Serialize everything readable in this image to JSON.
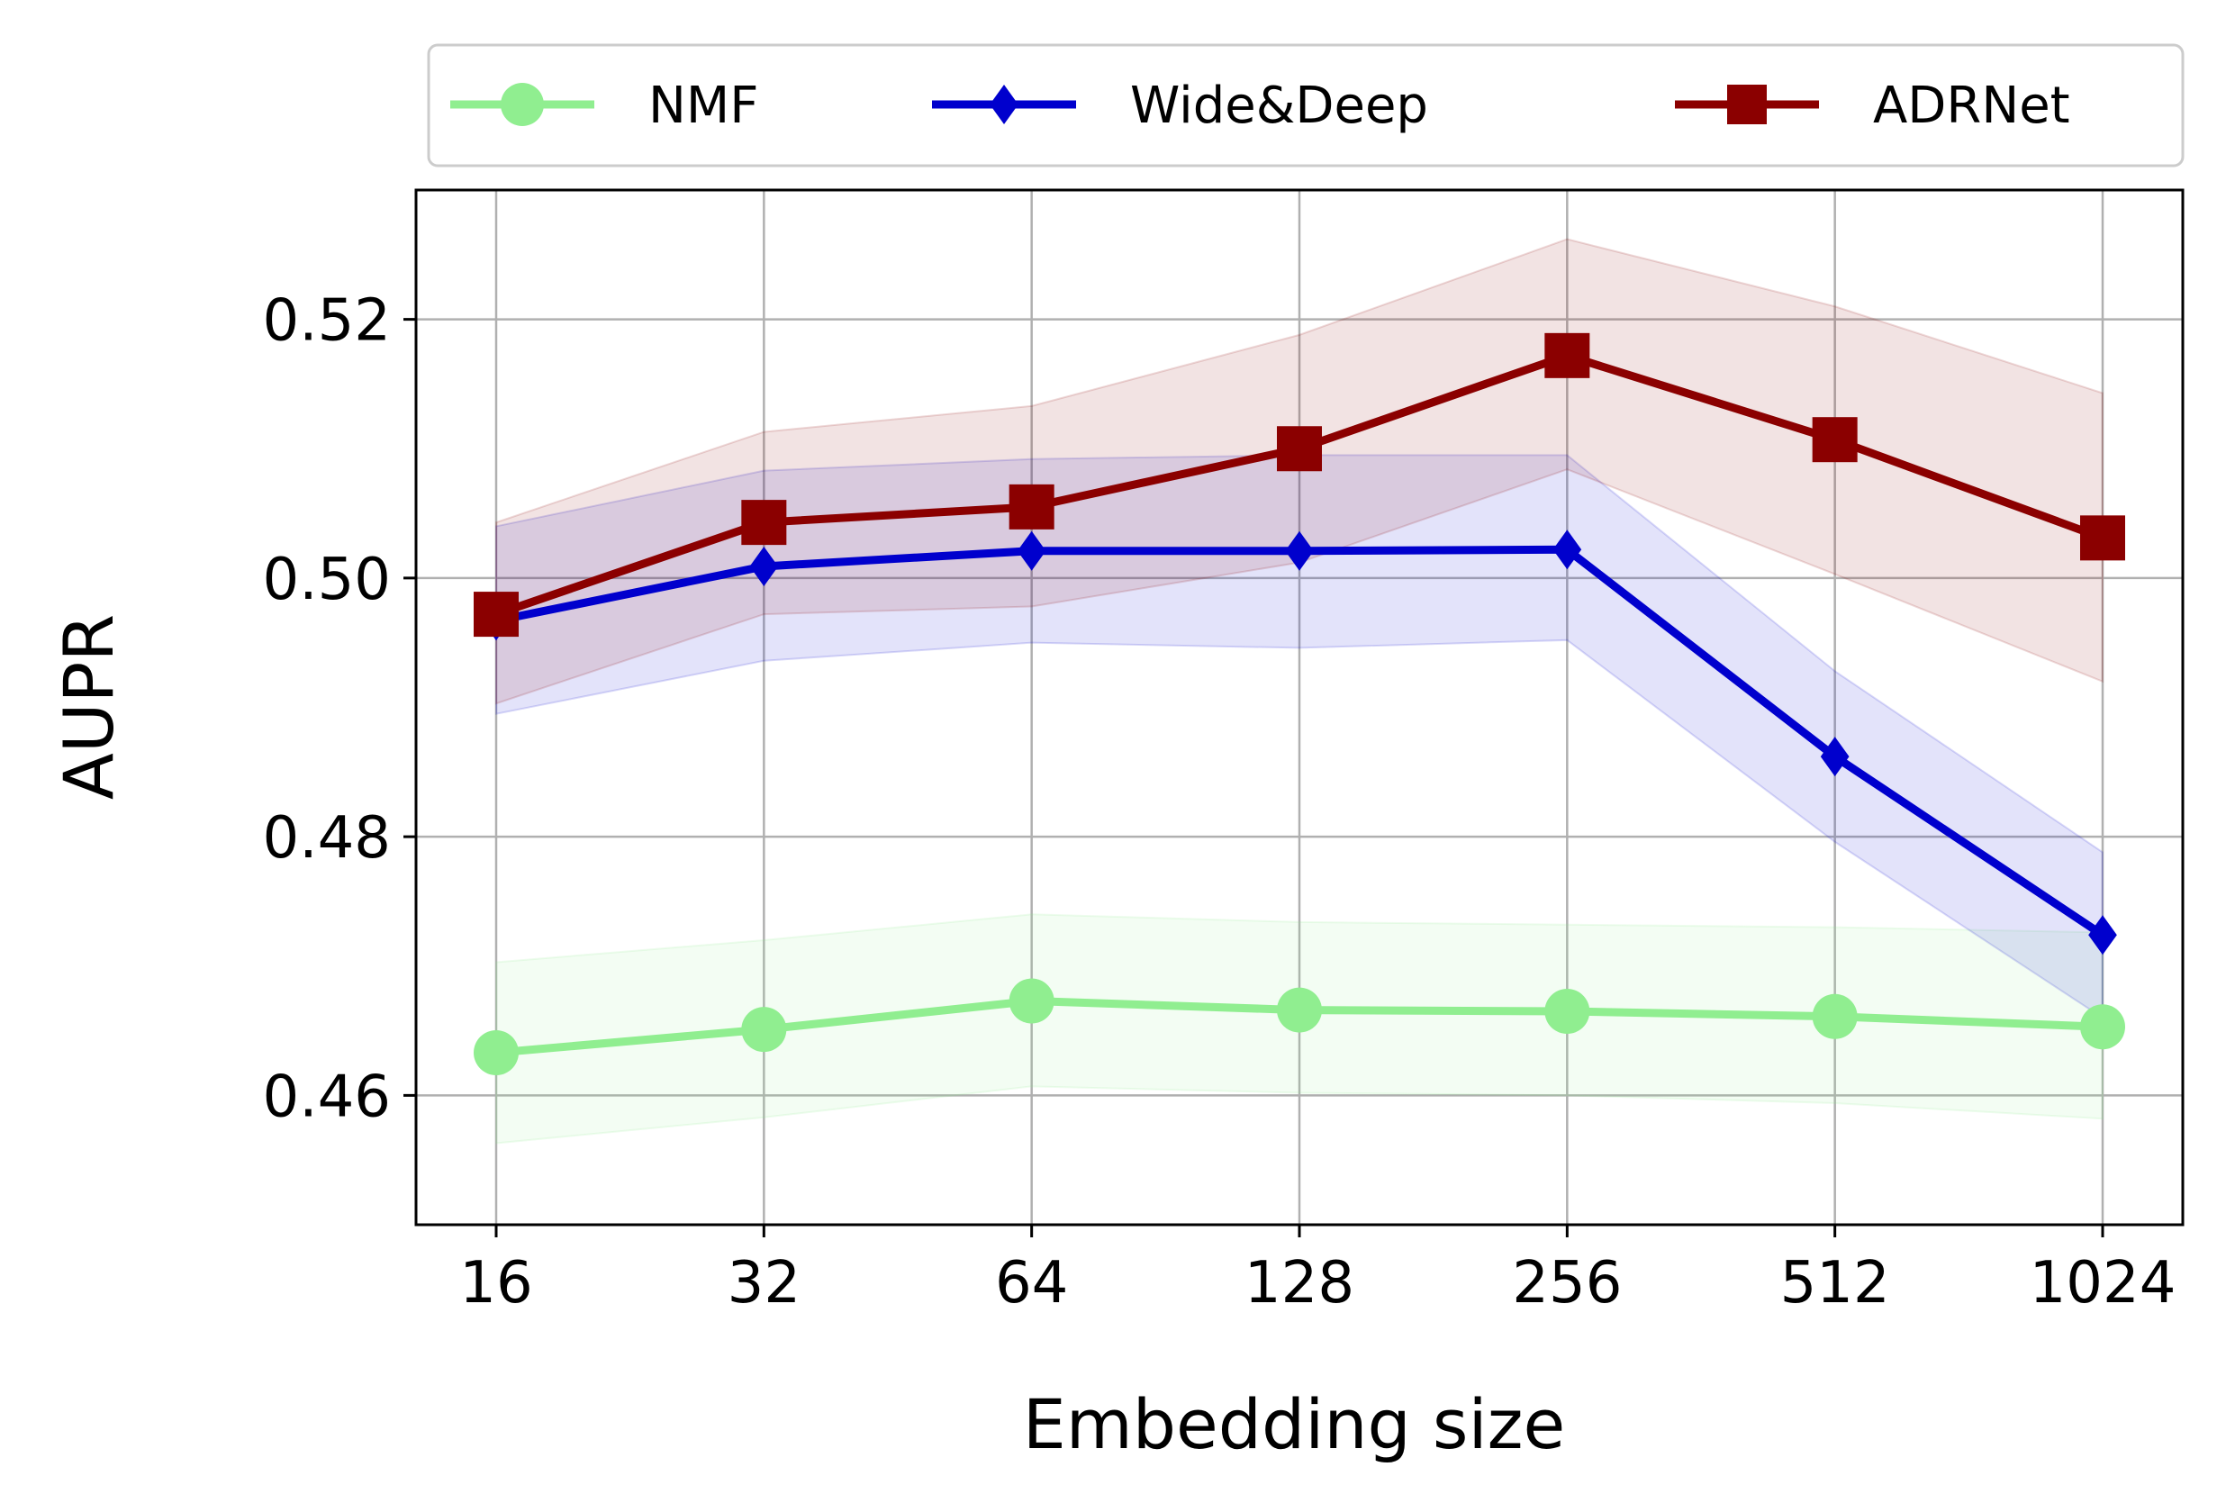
{
  "chart_data": {
    "type": "line",
    "xlabel": "Embedding size",
    "ylabel": "AUPR",
    "categories": [
      "16",
      "32",
      "64",
      "128",
      "256",
      "512",
      "1024"
    ],
    "ylim": [
      0.45,
      0.53
    ],
    "yticks": [
      "0.46",
      "0.48",
      "0.50",
      "0.52"
    ],
    "grid": true,
    "legend_position": "top",
    "series": [
      {
        "name": "NMF",
        "color": "#90ee90",
        "marker": "circle",
        "values": [
          0.4633,
          0.4651,
          0.4673,
          0.4666,
          0.4665,
          0.4661,
          0.4653
        ],
        "lower": [
          0.4563,
          0.4583,
          0.4607,
          0.4602,
          0.46,
          0.4594,
          0.4582
        ],
        "upper": [
          0.4703,
          0.472,
          0.474,
          0.4734,
          0.4732,
          0.473,
          0.4726
        ]
      },
      {
        "name": "Wide&Deep",
        "color": "#0000cd",
        "marker": "diamond",
        "values": [
          0.4967,
          0.5009,
          0.5021,
          0.5021,
          0.5022,
          0.4862,
          0.4724
        ],
        "lower": [
          0.4895,
          0.4936,
          0.495,
          0.4946,
          0.4952,
          0.4796,
          0.466
        ],
        "upper": [
          0.504,
          0.5083,
          0.5092,
          0.5095,
          0.5095,
          0.4928,
          0.4788
        ]
      },
      {
        "name": "ADRNet",
        "color": "#8b0000",
        "marker": "square",
        "values": [
          0.4972,
          0.5043,
          0.5055,
          0.51,
          0.5172,
          0.5107,
          0.5031
        ],
        "lower": [
          0.4903,
          0.4972,
          0.4978,
          0.5012,
          0.5084,
          0.5003,
          0.492
        ],
        "upper": [
          0.5043,
          0.5113,
          0.5133,
          0.5188,
          0.5262,
          0.521,
          0.5143
        ]
      }
    ]
  }
}
